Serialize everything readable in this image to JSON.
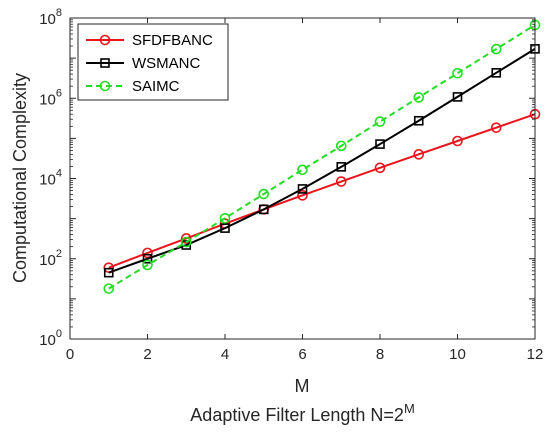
{
  "chart_data": {
    "type": "line",
    "x": [
      1,
      2,
      3,
      4,
      5,
      6,
      7,
      8,
      9,
      10,
      11,
      12
    ],
    "xlabel_line1": "M",
    "xlabel_line2": "Adaptive Filter Length N=2",
    "xlabel_line2_superscript": "M",
    "ylabel": "Computational Complexity",
    "xlim": [
      0,
      12
    ],
    "ylim": [
      1,
      100000000
    ],
    "yscale": "log",
    "xticks": [
      0,
      2,
      4,
      6,
      8,
      10,
      12
    ],
    "yticks": [
      {
        "base": "10",
        "exp": "0",
        "value": 1
      },
      {
        "base": "10",
        "exp": "2",
        "value": 100
      },
      {
        "base": "10",
        "exp": "4",
        "value": 10000
      },
      {
        "base": "10",
        "exp": "6",
        "value": 1000000
      },
      {
        "base": "10",
        "exp": "8",
        "value": 100000000
      }
    ],
    "grid": false,
    "legend_position": "top-left",
    "series": [
      {
        "name": "SFDFBANC",
        "color": "#e8161c",
        "marker": "circle",
        "dash": "solid",
        "values": [
          60,
          140,
          320,
          750,
          1700,
          3800,
          8400,
          18500,
          40000,
          86000,
          185000,
          400000
        ]
      },
      {
        "name": "WSMANC",
        "color": "#000000",
        "marker": "square",
        "dash": "solid",
        "values": [
          45,
          100,
          220,
          580,
          1700,
          5500,
          19500,
          72000,
          275000,
          1080000,
          4300000,
          17000000
        ]
      },
      {
        "name": "SAIMC",
        "color": "#22dd22",
        "marker": "circle",
        "dash": "dashed",
        "values": [
          18,
          70,
          260,
          1020,
          4100,
          16500,
          65000,
          262000,
          1050000,
          4200000,
          16800000,
          67000000
        ]
      }
    ]
  }
}
